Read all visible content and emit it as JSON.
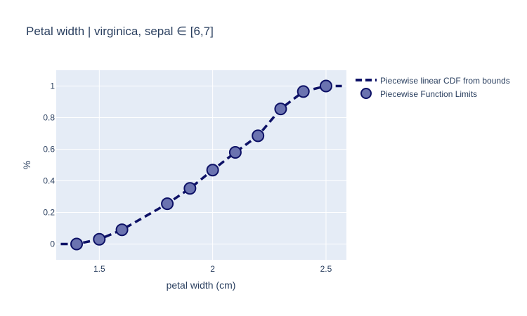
{
  "chart_data": {
    "type": "line",
    "title": "Petal width | virginica, sepal ∈ [6,7]",
    "xlabel": "petal width (cm)",
    "ylabel": "%",
    "xlim": [
      1.31,
      2.59
    ],
    "ylim": [
      -0.1,
      1.1
    ],
    "x_ticks": [
      1.5,
      2,
      2.5
    ],
    "x_tick_labels": [
      "1.5",
      "2",
      "2.5"
    ],
    "y_ticks": [
      0,
      0.2,
      0.4,
      0.6,
      0.8,
      1
    ],
    "y_tick_labels": [
      "0",
      "0.2",
      "0.4",
      "0.6",
      "0.8",
      "1"
    ],
    "grid": true,
    "legend_position": "top-right",
    "colors": {
      "line": "#0d1166",
      "marker_fill": "#6b73b0",
      "marker_edge": "#0d1166",
      "plot_bg": "#e5ecf6",
      "grid": "#ffffff"
    },
    "series": [
      {
        "name": "Piecewise linear CDF from bounds",
        "style": "dashed line",
        "x": [
          1.33,
          1.4,
          1.5,
          1.6,
          1.8,
          1.9,
          2.0,
          2.1,
          2.2,
          2.3,
          2.4,
          2.5,
          2.57
        ],
        "y": [
          0,
          0,
          0.03,
          0.09,
          0.255,
          0.352,
          0.468,
          0.58,
          0.685,
          0.855,
          0.965,
          1,
          1
        ]
      },
      {
        "name": "Piecewise Function Limits",
        "style": "markers",
        "x": [
          1.4,
          1.5,
          1.6,
          1.8,
          1.9,
          2.0,
          2.1,
          2.2,
          2.3,
          2.4,
          2.5
        ],
        "y": [
          0,
          0.03,
          0.09,
          0.255,
          0.352,
          0.468,
          0.58,
          0.685,
          0.855,
          0.965,
          1
        ]
      }
    ]
  }
}
